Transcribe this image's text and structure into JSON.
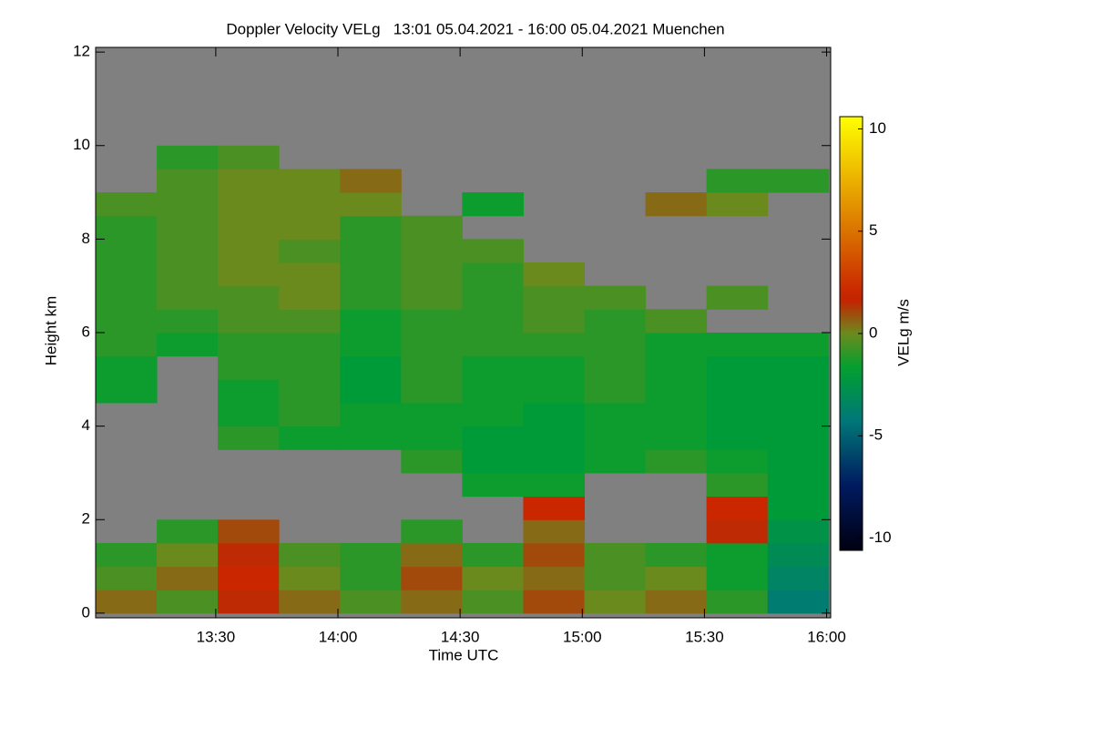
{
  "chart_data": {
    "type": "heatmap",
    "title": "Doppler Velocity VELg   13:01 05.04.2021 - 16:00 05.04.2021 Muenchen",
    "xlabel": "Time UTC",
    "ylabel": "Height km",
    "colorbar_label": "VELg m/s",
    "x": [
      788,
      803,
      818,
      833,
      848,
      863,
      878,
      893,
      908,
      923,
      938,
      953
    ],
    "y": [
      0.25,
      0.75,
      1.25,
      1.75,
      2.25,
      2.75,
      3.25,
      3.75,
      4.25,
      4.75,
      5.25,
      5.75,
      6.25,
      6.75,
      7.25,
      7.75,
      8.25,
      8.75,
      9.25,
      9.75,
      10.25,
      10.75,
      11.25,
      11.75
    ],
    "z": [
      [
        0.5,
        -0.5,
        1.5,
        0.5,
        -0.5,
        0.5,
        -0.5,
        1,
        0,
        0.5,
        -1,
        -4
      ],
      [
        -0.5,
        0.5,
        2,
        0,
        -1,
        1,
        0,
        0.5,
        -0.5,
        0,
        -1.5,
        -3.5
      ],
      [
        -1,
        0,
        1.5,
        -0.5,
        -1,
        0.5,
        -1,
        1,
        -0.5,
        -1,
        -1.5,
        -3
      ],
      [
        null,
        -1,
        1,
        null,
        null,
        -1,
        null,
        0.5,
        null,
        null,
        1.5,
        -2.5
      ],
      [
        null,
        null,
        null,
        null,
        null,
        null,
        null,
        2,
        null,
        null,
        2,
        -2
      ],
      [
        null,
        null,
        null,
        null,
        null,
        null,
        -1.5,
        -1.5,
        null,
        null,
        -1,
        -2
      ],
      [
        null,
        null,
        null,
        null,
        null,
        -1,
        -2,
        -2,
        -1.5,
        -1,
        -1.5,
        -2
      ],
      [
        null,
        null,
        -1,
        -1.5,
        -1.5,
        -1.5,
        -2,
        -2,
        -1.5,
        -1.5,
        -2,
        -2
      ],
      [
        null,
        null,
        -1.5,
        -1,
        -1.5,
        -1.5,
        -1.5,
        -2,
        -1.5,
        -1.5,
        -2,
        -2
      ],
      [
        -1.5,
        null,
        -1.5,
        -1,
        -2,
        -1,
        -1.5,
        -1.5,
        -1,
        -1.5,
        -2,
        -2
      ],
      [
        -1.5,
        null,
        -1,
        -1,
        -2,
        -1,
        -1.5,
        -1.5,
        -1,
        -1.5,
        -2,
        -2
      ],
      [
        -1,
        -1.5,
        -1,
        -1,
        -1.5,
        -1,
        -1,
        -1,
        -1,
        -1.5,
        -1.5,
        -1.5
      ],
      [
        -1,
        -1,
        -0.5,
        -0.5,
        -1.5,
        -1,
        -1,
        -0.5,
        -1,
        -0.5,
        null,
        null
      ],
      [
        -1,
        -0.5,
        -0.5,
        0,
        -1,
        -0.5,
        -1,
        -0.5,
        -0.5,
        null,
        -0.5,
        null
      ],
      [
        -1,
        -0.5,
        0,
        0,
        -1,
        -0.5,
        -1,
        0,
        null,
        null,
        null,
        null
      ],
      [
        -1,
        -0.5,
        0,
        -0.5,
        -1,
        -0.5,
        -0.5,
        null,
        null,
        null,
        null,
        null
      ],
      [
        -1,
        -0.5,
        0,
        0,
        -1,
        -0.5,
        null,
        null,
        null,
        null,
        null,
        null
      ],
      [
        -0.5,
        -0.5,
        0,
        0,
        0,
        null,
        -1.5,
        null,
        null,
        0.5,
        0,
        null
      ],
      [
        null,
        -0.5,
        0,
        0,
        0.5,
        null,
        null,
        null,
        null,
        null,
        -1,
        -1
      ],
      [
        null,
        -1,
        -0.5,
        null,
        null,
        null,
        null,
        null,
        null,
        null,
        null,
        null
      ],
      [
        null,
        null,
        null,
        null,
        null,
        null,
        null,
        null,
        null,
        null,
        null,
        null
      ],
      [
        null,
        null,
        null,
        null,
        null,
        null,
        null,
        null,
        null,
        null,
        null,
        null
      ],
      [
        null,
        null,
        null,
        null,
        null,
        null,
        null,
        null,
        null,
        null,
        null,
        null
      ],
      [
        null,
        null,
        null,
        null,
        null,
        null,
        null,
        null,
        null,
        null,
        null,
        null
      ]
    ],
    "xlim": [
      780.5,
      961
    ],
    "xticks": [
      {
        "value": 810,
        "label": "13:30"
      },
      {
        "value": 840,
        "label": "14:00"
      },
      {
        "value": 870,
        "label": "14:30"
      },
      {
        "value": 900,
        "label": "15:00"
      },
      {
        "value": 930,
        "label": "15:30"
      },
      {
        "value": 960,
        "label": "16:00"
      }
    ],
    "ylim": [
      -0.1,
      12.1
    ],
    "yticks": [
      0,
      2,
      4,
      6,
      8,
      10,
      12
    ],
    "zlim": [
      -10.6,
      10.6
    ],
    "zticks": [
      -10,
      -5,
      0,
      5,
      10
    ],
    "missing_color": "#808080"
  }
}
